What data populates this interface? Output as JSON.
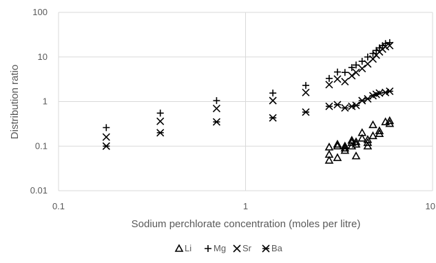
{
  "chart_data": {
    "type": "scatter",
    "title": "",
    "xlabel": "Sodium perchlorate concentration (moles per litre)",
    "ylabel": "Distribution ratio",
    "x_scale": "log",
    "y_scale": "log",
    "xlim": [
      0.1,
      10
    ],
    "ylim": [
      0.01,
      100
    ],
    "x_ticks": [
      "0.1",
      "1",
      "10"
    ],
    "y_ticks": [
      "0.01",
      "0.1",
      "1",
      "10",
      "100"
    ],
    "grid": true,
    "legend": "bottom",
    "series": [
      {
        "name": "Li",
        "marker": "triangle",
        "points": [
          [
            2.8,
            0.048
          ],
          [
            2.8,
            0.065
          ],
          [
            2.8,
            0.095
          ],
          [
            3.1,
            0.055
          ],
          [
            3.1,
            0.1
          ],
          [
            3.1,
            0.11
          ],
          [
            3.4,
            0.08
          ],
          [
            3.4,
            0.09
          ],
          [
            3.4,
            0.1
          ],
          [
            3.7,
            0.1
          ],
          [
            3.7,
            0.12
          ],
          [
            3.7,
            0.135
          ],
          [
            3.9,
            0.06
          ],
          [
            3.9,
            0.11
          ],
          [
            3.9,
            0.125
          ],
          [
            4.2,
            0.15
          ],
          [
            4.2,
            0.2
          ],
          [
            4.5,
            0.1
          ],
          [
            4.5,
            0.12
          ],
          [
            4.5,
            0.14
          ],
          [
            4.8,
            0.17
          ],
          [
            4.8,
            0.3
          ],
          [
            5.2,
            0.19
          ],
          [
            5.2,
            0.22
          ],
          [
            5.6,
            0.35
          ],
          [
            5.9,
            0.32
          ],
          [
            5.9,
            0.37
          ]
        ]
      },
      {
        "name": "Mg",
        "marker": "plus",
        "points": [
          [
            0.18,
            0.26
          ],
          [
            0.35,
            0.55
          ],
          [
            0.7,
            1.05
          ],
          [
            1.4,
            1.55
          ],
          [
            2.1,
            2.3
          ],
          [
            2.8,
            3.3
          ],
          [
            3.1,
            4.6
          ],
          [
            3.4,
            4.5
          ],
          [
            3.7,
            5.8
          ],
          [
            3.9,
            6.6
          ],
          [
            4.2,
            8.0
          ],
          [
            4.5,
            10.0
          ],
          [
            4.8,
            12.0
          ],
          [
            5.0,
            14.0
          ],
          [
            5.2,
            16.0
          ],
          [
            5.4,
            18.0
          ],
          [
            5.6,
            20.0
          ],
          [
            5.9,
            21.0
          ]
        ]
      },
      {
        "name": "Sr",
        "marker": "x",
        "points": [
          [
            0.18,
            0.16
          ],
          [
            0.35,
            0.36
          ],
          [
            0.7,
            0.7
          ],
          [
            1.4,
            1.05
          ],
          [
            2.1,
            1.6
          ],
          [
            2.8,
            2.4
          ],
          [
            3.1,
            3.2
          ],
          [
            3.4,
            2.8
          ],
          [
            3.7,
            3.8
          ],
          [
            3.9,
            4.5
          ],
          [
            4.2,
            5.5
          ],
          [
            4.5,
            7.0
          ],
          [
            4.8,
            9.0
          ],
          [
            5.0,
            11.0
          ],
          [
            5.2,
            13.0
          ],
          [
            5.4,
            15.0
          ],
          [
            5.6,
            17.0
          ],
          [
            5.9,
            18.0
          ]
        ]
      },
      {
        "name": "Ba",
        "marker": "asterisk",
        "points": [
          [
            0.18,
            0.1
          ],
          [
            0.35,
            0.2
          ],
          [
            0.7,
            0.35
          ],
          [
            1.4,
            0.43
          ],
          [
            2.1,
            0.58
          ],
          [
            2.8,
            0.78
          ],
          [
            3.1,
            0.85
          ],
          [
            3.4,
            0.72
          ],
          [
            3.7,
            0.78
          ],
          [
            3.9,
            0.82
          ],
          [
            4.2,
            1.05
          ],
          [
            4.5,
            1.15
          ],
          [
            4.8,
            1.35
          ],
          [
            5.0,
            1.45
          ],
          [
            5.2,
            1.55
          ],
          [
            5.6,
            1.6
          ],
          [
            5.9,
            1.7
          ]
        ]
      }
    ]
  }
}
